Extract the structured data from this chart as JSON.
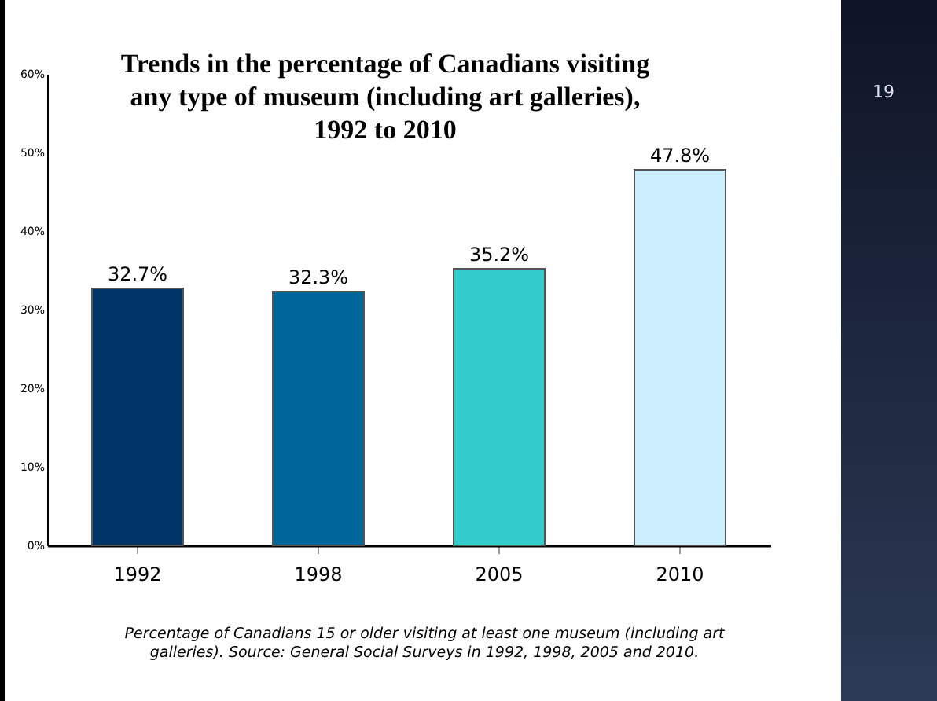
{
  "chart_data": {
    "type": "bar",
    "title": "Trends in the percentage of Canadians visiting any type of museum (including art galleries), 1992 to 2010",
    "categories": [
      "1992",
      "1998",
      "2005",
      "2010"
    ],
    "values": [
      32.7,
      32.3,
      35.2,
      47.8
    ],
    "colors": [
      "#003366",
      "#006699",
      "#33cccc",
      "#cceeff"
    ],
    "value_labels": [
      "32.7%",
      "32.3%",
      "35.2%",
      "47.8%"
    ],
    "ylim": [
      0,
      60
    ],
    "yticks": [
      {
        "value": 0,
        "label": "0%"
      },
      {
        "value": 10,
        "label": "10%"
      },
      {
        "value": 20,
        "label": "20%"
      },
      {
        "value": 30,
        "label": "30%"
      },
      {
        "value": 40,
        "label": "40%"
      },
      {
        "value": 50,
        "label": "50%"
      },
      {
        "value": 60,
        "label": "60%"
      }
    ],
    "annotations": [
      "Percentage of Canadians 15 or older visiting at least one museum (including art galleries). Source: General Social Surveys in 1992, 1998, 2005 and 2010.",
      "19"
    ]
  }
}
